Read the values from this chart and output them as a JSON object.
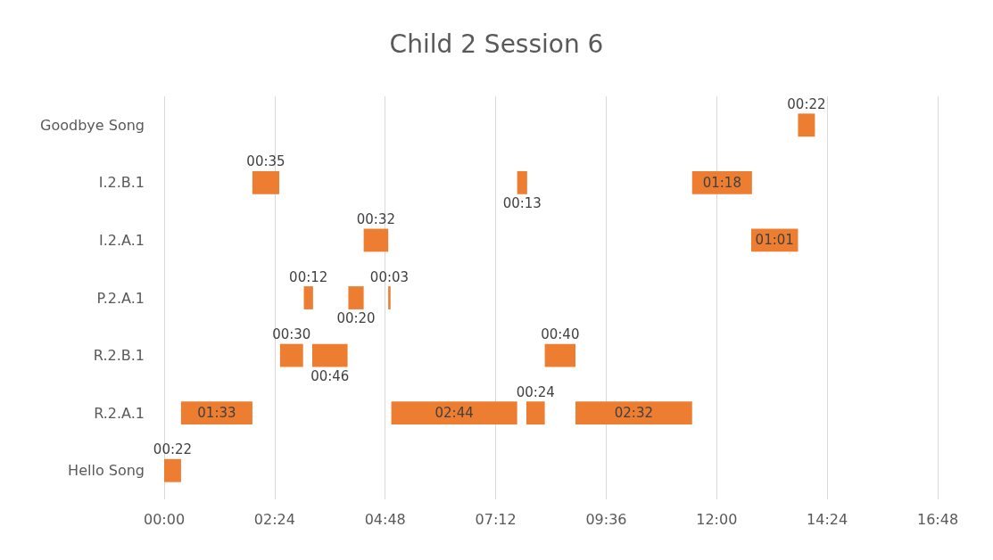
{
  "chart_data": {
    "type": "bar",
    "orientation": "horizontal",
    "title": "Child 2 Session 6",
    "categories": [
      "Goodbye Song",
      "I.2.B.1",
      "I.2.A.1",
      "P.2.A.1",
      "R.2.B.1",
      "R.2.A.1",
      "Hello Song"
    ],
    "series": [
      {
        "color": "#ed7d31",
        "values": [
          22,
          35,
          32,
          12,
          30,
          93,
          22
        ],
        "base": [
          826,
          115,
          260,
          182,
          151,
          22,
          0
        ],
        "value_labels": [
          "00:22",
          "00:35",
          "00:32",
          "00:12",
          "00:30",
          "01:33",
          "00:22"
        ]
      },
      {
        "color": "#ed7d31",
        "values": [
          null,
          13,
          61,
          20,
          46,
          164,
          null
        ],
        "base": [
          null,
          460,
          765,
          240,
          193,
          296,
          null
        ],
        "value_labels": [
          null,
          "00:13",
          "01:01",
          "00:20",
          "00:46",
          "02:44",
          null
        ]
      },
      {
        "color": "#ed7d31",
        "values": [
          null,
          78,
          null,
          3,
          40,
          24,
          null
        ],
        "base": [
          null,
          688,
          null,
          292,
          496,
          472,
          null
        ],
        "value_labels": [
          null,
          "01:18",
          null,
          "00:03",
          "00:40",
          "00:24",
          null
        ]
      },
      {
        "color": "#ed7d31",
        "values": [
          null,
          null,
          null,
          null,
          null,
          152,
          null
        ],
        "base": [
          null,
          null,
          null,
          null,
          null,
          536,
          null
        ],
        "value_labels": [
          null,
          null,
          null,
          null,
          null,
          "02:32",
          null
        ]
      }
    ],
    "xlim": [
      0,
      1008
    ],
    "xticks": [
      {
        "value": 0,
        "label": "00:00"
      },
      {
        "value": 144,
        "label": "02:24"
      },
      {
        "value": 288,
        "label": "04:48"
      },
      {
        "value": 432,
        "label": "07:12"
      },
      {
        "value": 576,
        "label": "09:36"
      },
      {
        "value": 720,
        "label": "12:00"
      },
      {
        "value": 864,
        "label": "14:24"
      },
      {
        "value": 1008,
        "label": "16:48"
      }
    ],
    "grid": "x"
  }
}
